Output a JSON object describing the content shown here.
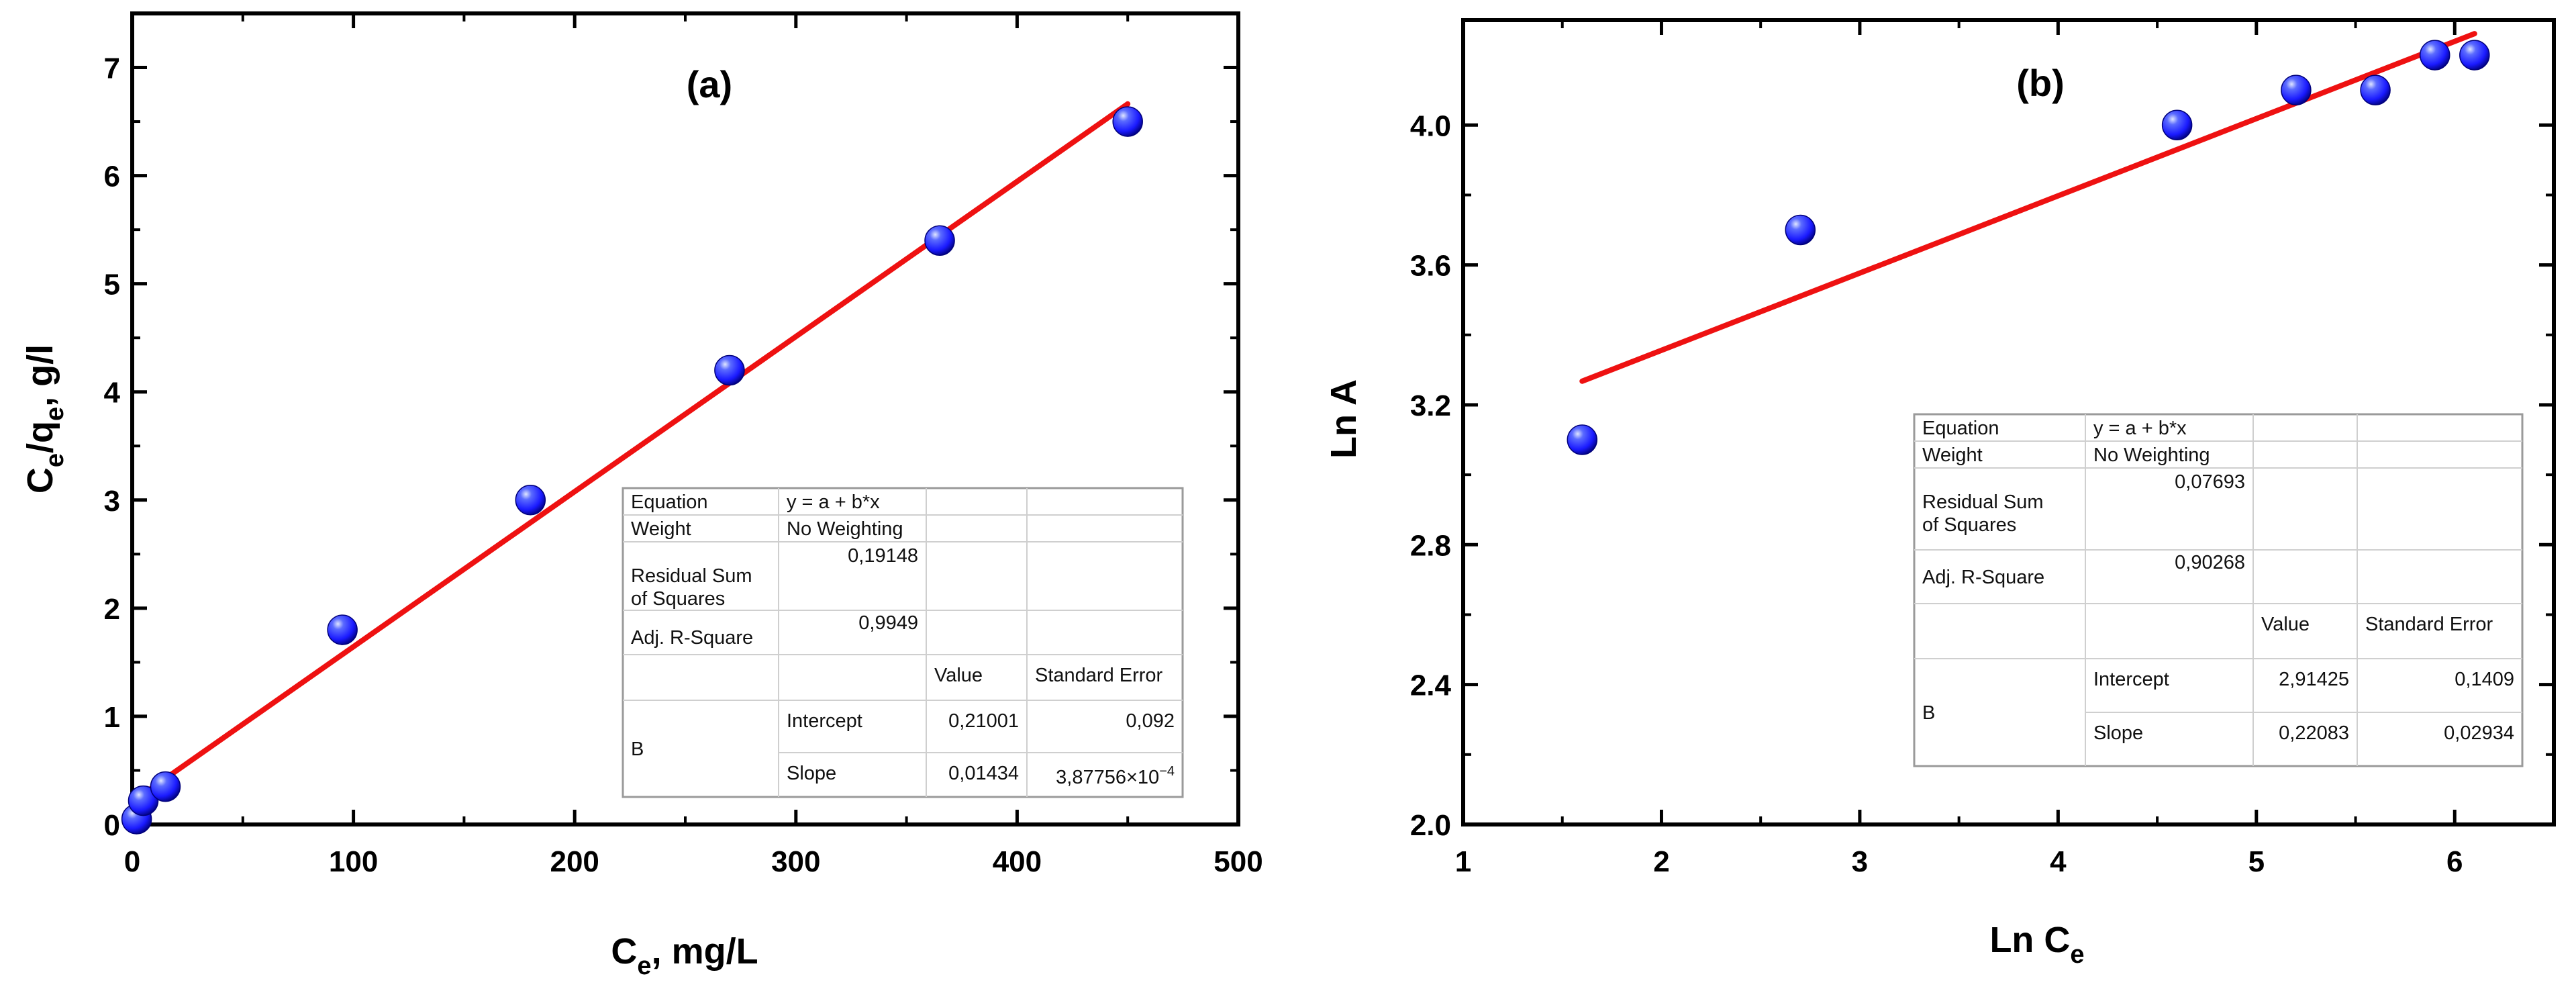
{
  "chart_data": [
    {
      "type": "scatter",
      "panel_label": "(a)",
      "xlabel": {
        "main": "C",
        "sub": "e",
        "rest": ", mg/L"
      },
      "ylabel": {
        "p1": "C",
        "s1": "e",
        "p2": "/q",
        "s2": "e",
        "p3": ", g/l"
      },
      "xlim": [
        0,
        500
      ],
      "ylim": [
        0,
        7.5
      ],
      "xticks": [
        0,
        100,
        200,
        300,
        400,
        500
      ],
      "yticks": [
        0,
        1,
        2,
        3,
        4,
        5,
        6,
        7
      ],
      "xtick_labels": [
        "0",
        "100",
        "200",
        "300",
        "400",
        "500"
      ],
      "ytick_labels": [
        "0",
        "1",
        "2",
        "3",
        "4",
        "5",
        "6",
        "7"
      ],
      "points": {
        "x": [
          2,
          5,
          15,
          95,
          180,
          270,
          365,
          450
        ],
        "y": [
          0.05,
          0.22,
          0.35,
          1.8,
          3.0,
          4.2,
          5.4,
          6.5
        ]
      },
      "fit": {
        "intercept": 0.21001,
        "slope": 0.01434,
        "x_range": [
          0,
          450
        ]
      },
      "grid": false,
      "table": {
        "equation_label": "Equation",
        "equation_value": "y = a + b*x",
        "weight_label": "Weight",
        "weight_value": "No Weighting",
        "rss_label": "Residual Sum of Squares",
        "rss_value": "0,19148",
        "adjr_label": "Adj. R-Square",
        "adjr_value": "0,9949",
        "value_header": "Value",
        "se_header": "Standard Error",
        "group_label": "B",
        "intercept_label": "Intercept",
        "intercept_value": "0,21001",
        "intercept_se": "0,092",
        "slope_label": "Slope",
        "slope_value": "0,01434",
        "slope_se": "3,87756×10",
        "slope_se_exp": "−4"
      }
    },
    {
      "type": "scatter",
      "panel_label": "(b)",
      "xlabel": {
        "main": "Ln C",
        "sub": "e",
        "rest": ""
      },
      "ylabel": {
        "p1": "Ln A"
      },
      "xlim": [
        1,
        6.5
      ],
      "ylim": [
        2.0,
        4.3
      ],
      "xticks": [
        1,
        2,
        3,
        4,
        5,
        6
      ],
      "yticks": [
        2.0,
        2.4,
        2.8,
        3.2,
        3.6,
        4.0
      ],
      "xtick_labels": [
        "1",
        "2",
        "3",
        "4",
        "5",
        "6"
      ],
      "ytick_labels": [
        "2.0",
        "2.4",
        "2.8",
        "3.2",
        "3.6",
        "4.0"
      ],
      "points": {
        "x": [
          1.6,
          2.7,
          4.6,
          5.2,
          5.6,
          5.9,
          6.1
        ],
        "y": [
          3.1,
          3.7,
          4.0,
          4.1,
          4.1,
          4.2,
          4.2
        ]
      },
      "fit": {
        "intercept": 2.91425,
        "slope": 0.22083,
        "x_range": [
          1.6,
          6.1
        ]
      },
      "grid": false,
      "table": {
        "equation_label": "Equation",
        "equation_value": "y = a + b*x",
        "weight_label": "Weight",
        "weight_value": "No Weighting",
        "rss_label": "Residual Sum of Squares",
        "rss_value": "0,07693",
        "adjr_label": "Adj. R-Square",
        "adjr_value": "0,90268",
        "value_header": "Value",
        "se_header": "Standard Error",
        "group_label": "B",
        "intercept_label": "Intercept",
        "intercept_value": "2,91425",
        "intercept_se": "0,1409",
        "slope_label": "Slope",
        "slope_value": "0,22083",
        "slope_se": "0,02934"
      }
    }
  ],
  "colors": {
    "marker": "#1a1aff",
    "marker_dark": "#00007a",
    "fit_line": "#ee1111",
    "axis": "#000000",
    "table_border": "#9a9a9a"
  }
}
